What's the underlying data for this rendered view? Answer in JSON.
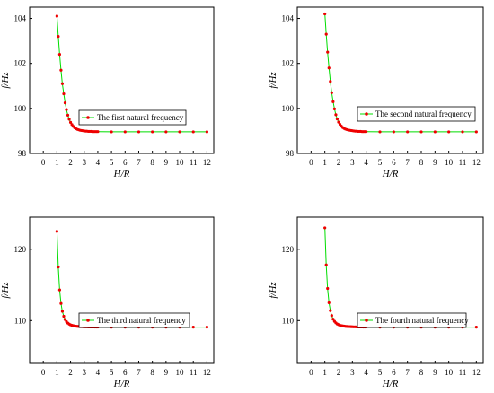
{
  "colors": {
    "line": "#00dd00",
    "marker": "#ee0000",
    "axis": "#000000"
  },
  "chart_data": [
    {
      "type": "line",
      "xlabel": "H/R",
      "ylabel": "f/Hz",
      "xlim": [
        -1,
        12.5
      ],
      "ylim": [
        98,
        104.5
      ],
      "xticks": [
        0,
        1,
        2,
        3,
        4,
        5,
        6,
        7,
        8,
        9,
        10,
        11,
        12
      ],
      "yticks": [
        98,
        100,
        102,
        104
      ],
      "ytick_labels": [
        "98",
        "100",
        "102",
        "104"
      ],
      "legend": "left-center",
      "series": [
        {
          "name": "The first natural frequency",
          "x": [
            1.0,
            1.1,
            1.2,
            1.3,
            1.4,
            1.5,
            1.6,
            1.7,
            1.8,
            1.9,
            2.0,
            2.1,
            2.2,
            2.3,
            2.4,
            2.5,
            2.6,
            2.7,
            2.8,
            2.9,
            3.0,
            3.1,
            3.2,
            3.3,
            3.4,
            3.5,
            3.6,
            3.7,
            3.8,
            3.9,
            4.0,
            5,
            6,
            7,
            8,
            9,
            10,
            11,
            12
          ],
          "y": [
            104.1,
            103.2,
            102.4,
            101.7,
            101.1,
            100.65,
            100.25,
            99.95,
            99.7,
            99.52,
            99.38,
            99.28,
            99.2,
            99.14,
            99.1,
            99.07,
            99.05,
            99.03,
            99.02,
            99.01,
            99.0,
            98.99,
            98.99,
            98.98,
            98.98,
            98.98,
            98.97,
            98.97,
            98.97,
            98.97,
            98.97,
            98.96,
            98.96,
            98.96,
            98.96,
            98.96,
            98.96,
            98.96,
            98.96
          ]
        }
      ]
    },
    {
      "type": "line",
      "xlabel": "H/R",
      "ylabel": "f/Hz",
      "xlim": [
        -1,
        12.5
      ],
      "ylim": [
        98,
        104.5
      ],
      "xticks": [
        0,
        1,
        2,
        3,
        4,
        5,
        6,
        7,
        8,
        9,
        10,
        11,
        12
      ],
      "yticks": [
        98,
        100,
        102,
        104
      ],
      "ytick_labels": [
        "98",
        "100",
        "102",
        "104"
      ],
      "legend": "right-center",
      "series": [
        {
          "name": "The second natural frequency",
          "x": [
            1.0,
            1.1,
            1.2,
            1.3,
            1.4,
            1.5,
            1.6,
            1.7,
            1.8,
            1.9,
            2.0,
            2.1,
            2.2,
            2.3,
            2.4,
            2.5,
            2.6,
            2.7,
            2.8,
            2.9,
            3.0,
            3.1,
            3.2,
            3.3,
            3.4,
            3.5,
            3.6,
            3.7,
            3.8,
            3.9,
            4.0,
            5,
            6,
            7,
            8,
            9,
            10,
            11,
            12
          ],
          "y": [
            104.2,
            103.3,
            102.5,
            101.8,
            101.2,
            100.7,
            100.3,
            99.98,
            99.72,
            99.53,
            99.39,
            99.29,
            99.21,
            99.15,
            99.11,
            99.08,
            99.06,
            99.04,
            99.03,
            99.02,
            99.01,
            99.0,
            98.99,
            98.99,
            98.98,
            98.98,
            98.98,
            98.97,
            98.97,
            98.97,
            98.97,
            98.96,
            98.96,
            98.96,
            98.96,
            98.96,
            98.96,
            98.96,
            98.96
          ]
        }
      ]
    },
    {
      "type": "line",
      "xlabel": "H/R",
      "ylabel": "f/Hz",
      "xlim": [
        -1,
        12.5
      ],
      "ylim": [
        104,
        124.5
      ],
      "xticks": [
        0,
        1,
        2,
        3,
        4,
        5,
        6,
        7,
        8,
        9,
        10,
        11,
        12
      ],
      "yticks": [
        110,
        120
      ],
      "ytick_labels": [
        "110",
        "120"
      ],
      "legend": "right-center",
      "series": [
        {
          "name": "The third natural frequency",
          "x": [
            1.0,
            1.1,
            1.2,
            1.3,
            1.4,
            1.5,
            1.6,
            1.7,
            1.8,
            1.9,
            2.0,
            2.1,
            2.2,
            2.3,
            2.4,
            2.5,
            2.6,
            2.7,
            2.8,
            2.9,
            3.0,
            3.1,
            3.2,
            3.3,
            3.4,
            3.5,
            3.6,
            3.7,
            3.8,
            3.9,
            4.0,
            5,
            6,
            7,
            8,
            9,
            10,
            11,
            12
          ],
          "y": [
            122.5,
            117.5,
            114.3,
            112.4,
            111.3,
            110.6,
            110.15,
            109.85,
            109.65,
            109.5,
            109.4,
            109.33,
            109.28,
            109.24,
            109.21,
            109.19,
            109.17,
            109.16,
            109.15,
            109.14,
            109.13,
            109.12,
            109.12,
            109.11,
            109.11,
            109.1,
            109.1,
            109.1,
            109.09,
            109.09,
            109.09,
            109.08,
            109.08,
            109.08,
            109.08,
            109.08,
            109.08,
            109.08,
            109.08
          ]
        }
      ]
    },
    {
      "type": "line",
      "xlabel": "H/R",
      "ylabel": "f/Hz",
      "xlim": [
        -1,
        12.5
      ],
      "ylim": [
        104,
        124.5
      ],
      "xticks": [
        0,
        1,
        2,
        3,
        4,
        5,
        6,
        7,
        8,
        9,
        10,
        11,
        12
      ],
      "yticks": [
        110,
        120
      ],
      "ytick_labels": [
        "110",
        "120"
      ],
      "legend": "right-center",
      "series": [
        {
          "name": "The fourth natural frequency",
          "x": [
            1.0,
            1.1,
            1.2,
            1.3,
            1.4,
            1.5,
            1.6,
            1.7,
            1.8,
            1.9,
            2.0,
            2.1,
            2.2,
            2.3,
            2.4,
            2.5,
            2.6,
            2.7,
            2.8,
            2.9,
            3.0,
            3.1,
            3.2,
            3.3,
            3.4,
            3.5,
            3.6,
            3.7,
            3.8,
            3.9,
            4.0,
            5,
            6,
            7,
            8,
            9,
            10,
            11,
            12
          ],
          "y": [
            123.0,
            117.8,
            114.5,
            112.5,
            111.4,
            110.7,
            110.2,
            109.9,
            109.68,
            109.52,
            109.42,
            109.34,
            109.29,
            109.25,
            109.22,
            109.19,
            109.17,
            109.16,
            109.15,
            109.14,
            109.13,
            109.12,
            109.12,
            109.11,
            109.11,
            109.1,
            109.1,
            109.1,
            109.09,
            109.09,
            109.09,
            109.08,
            109.08,
            109.08,
            109.08,
            109.08,
            109.08,
            109.08,
            109.08
          ]
        }
      ]
    }
  ]
}
